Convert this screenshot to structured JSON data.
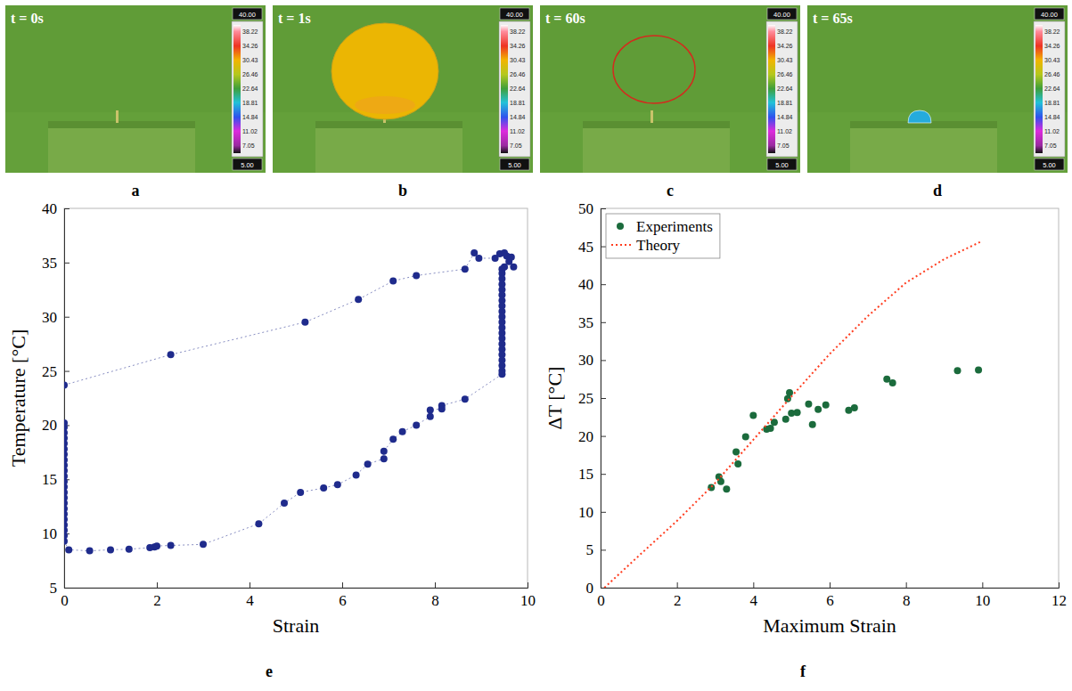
{
  "images": {
    "colorbar": {
      "range": [
        5,
        40
      ],
      "top_label": "40.00",
      "bottom_label": "5.00",
      "ticks": [
        38.22,
        34.26,
        30.43,
        26.46,
        22.64,
        18.81,
        14.84,
        11.02,
        7.05
      ]
    },
    "frames": [
      {
        "panel": "a",
        "time_label": "t = 0s"
      },
      {
        "panel": "b",
        "time_label": "t = 1s",
        "object": {
          "shape": "balloon",
          "temperature": 30
        }
      },
      {
        "panel": "c",
        "time_label": "t = 60s",
        "object": {
          "shape": "outline",
          "color": "#d42a1e"
        }
      },
      {
        "panel": "d",
        "time_label": "t = 65s",
        "object": {
          "shape": "droplet",
          "temperature": 18
        }
      }
    ]
  },
  "chart_data": [
    {
      "type": "scatter",
      "panel": "e",
      "xlabel": "Strain",
      "ylabel": "Temperature [°C]",
      "xlim": [
        0,
        10
      ],
      "ylim": [
        5,
        40
      ],
      "xticks": [
        0,
        2,
        4,
        6,
        8,
        10
      ],
      "yticks": [
        5,
        10,
        15,
        20,
        25,
        30,
        35,
        40
      ],
      "series": [
        {
          "color": "#1f2b8c",
          "marker": "circle",
          "line_style": "dotted",
          "x": [
            0,
            2.3,
            5.2,
            6.35,
            7.1,
            7.6,
            8.65,
            8.85,
            8.95,
            9.3,
            9.4,
            9.5,
            9.55,
            9.65,
            9.6,
            9.5,
            9.7,
            9.45,
            9.45,
            9.45,
            9.45,
            9.45,
            9.45,
            9.45,
            9.45,
            9.45,
            9.45,
            9.45,
            9.45,
            9.45,
            9.45,
            9.45,
            9.45,
            9.45,
            9.45,
            9.45,
            9.45,
            9.45,
            8.65,
            8.15,
            8.15,
            7.9,
            7.9,
            7.6,
            7.3,
            7.1,
            6.9,
            6.9,
            6.55,
            6.3,
            5.9,
            5.6,
            5.1,
            4.75,
            4.2,
            3.0,
            2.3,
            2.0,
            1.95,
            1.85,
            1.4,
            1.0,
            0.55,
            0.1,
            0,
            0,
            0,
            0,
            0,
            0,
            0,
            0,
            0,
            0,
            0,
            0,
            0,
            0,
            0,
            0,
            0,
            0,
            0,
            0,
            0,
            0,
            0
          ],
          "values": [
            23.7,
            26.5,
            29.5,
            31.6,
            33.3,
            33.8,
            34.4,
            35.9,
            35.4,
            35.4,
            35.8,
            35.9,
            35.6,
            35.5,
            35.1,
            34.6,
            34.6,
            34.4,
            34.0,
            33.5,
            33.0,
            32.5,
            32.0,
            31.5,
            31.0,
            30.5,
            30.0,
            29.5,
            29.0,
            28.5,
            28.0,
            27.5,
            27.0,
            26.5,
            26.0,
            25.5,
            25.0,
            24.7,
            22.4,
            21.8,
            21.5,
            21.4,
            20.8,
            20.0,
            19.4,
            18.7,
            17.6,
            16.9,
            16.4,
            15.4,
            14.5,
            14.2,
            13.8,
            12.8,
            10.9,
            9.0,
            8.9,
            8.85,
            8.75,
            8.7,
            8.55,
            8.5,
            8.4,
            8.5,
            9.3,
            9.8,
            10.3,
            10.8,
            11.3,
            11.8,
            12.3,
            12.8,
            13.3,
            13.8,
            14.3,
            14.8,
            15.3,
            15.8,
            16.3,
            16.8,
            17.3,
            17.8,
            18.3,
            18.8,
            19.3,
            19.8,
            20.2
          ]
        }
      ]
    },
    {
      "type": "scatter",
      "panel": "f",
      "xlabel": "Maximum Strain",
      "ylabel": "ΔT [°C]",
      "xlim": [
        0,
        12
      ],
      "ylim": [
        0,
        50
      ],
      "xticks": [
        0,
        2,
        4,
        6,
        8,
        10,
        12
      ],
      "yticks": [
        0,
        5,
        10,
        15,
        20,
        25,
        30,
        35,
        40,
        45,
        50
      ],
      "legend": "upper left",
      "series": [
        {
          "name": "Experiments",
          "color": "#1b6b3c",
          "marker": "circle",
          "x": [
            2.9,
            3.1,
            3.15,
            3.3,
            3.55,
            3.6,
            3.8,
            4.0,
            4.35,
            4.45,
            4.55,
            4.85,
            4.9,
            4.95,
            5.0,
            5.15,
            5.45,
            5.55,
            5.7,
            5.9,
            6.5,
            6.65,
            7.5,
            7.65,
            9.35,
            9.9
          ],
          "values": [
            13.2,
            14.6,
            14.0,
            13.0,
            17.9,
            16.3,
            19.9,
            22.7,
            20.9,
            21.0,
            21.8,
            22.2,
            24.9,
            25.7,
            23.0,
            23.1,
            24.2,
            21.5,
            23.5,
            24.1,
            23.4,
            23.7,
            27.5,
            27.0,
            28.6,
            28.7
          ]
        },
        {
          "name": "Theory",
          "type": "line",
          "color": "#ff3d1f",
          "line_style": "dotted",
          "x": [
            0.1,
            1,
            2,
            3,
            4,
            5,
            6,
            7,
            8,
            9,
            10
          ],
          "values": [
            0,
            4.2,
            8.8,
            13.8,
            19.5,
            25.2,
            30.8,
            35.8,
            40.2,
            43.3,
            45.7
          ]
        }
      ]
    }
  ]
}
